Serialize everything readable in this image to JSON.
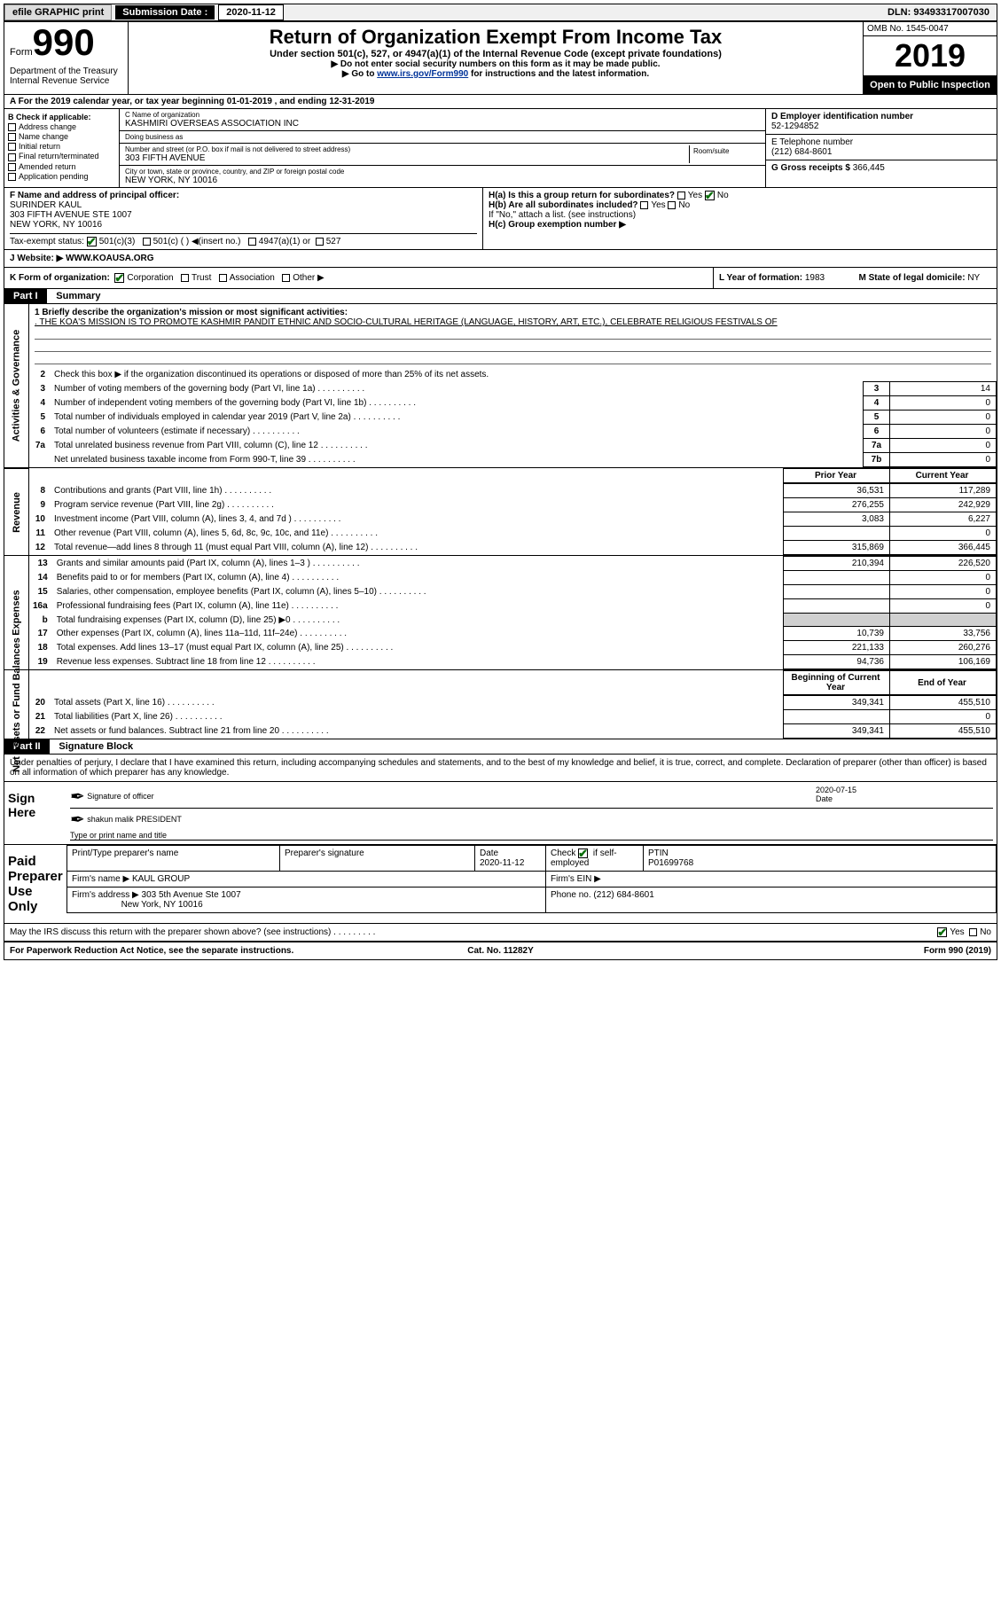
{
  "topbar": {
    "efile": "efile GRAPHIC print",
    "sublabel": "Submission Date :",
    "subdate": "2020-11-12",
    "dln": "DLN: 93493317007030"
  },
  "header": {
    "formword": "Form",
    "formnum": "990",
    "dept": "Department of the Treasury\nInternal Revenue Service",
    "title": "Return of Organization Exempt From Income Tax",
    "subtitle": "Under section 501(c), 527, or 4947(a)(1) of the Internal Revenue Code (except private foundations)",
    "note1": "▶ Do not enter social security numbers on this form as it may be made public.",
    "note2_pre": "▶ Go to ",
    "note2_link": "www.irs.gov/Form990",
    "note2_post": " for instructions and the latest information.",
    "omb": "OMB No. 1545-0047",
    "year": "2019",
    "open": "Open to Public Inspection"
  },
  "rowA": "A For the 2019 calendar year, or tax year beginning 01-01-2019    , and ending 12-31-2019",
  "colB_label": "B Check if applicable:",
  "colB_items": [
    "Address change",
    "Name change",
    "Initial return",
    "Final return/terminated",
    "Amended return",
    "Application pending"
  ],
  "colC": {
    "name_lbl": "C Name of organization",
    "name_val": "KASHMIRI OVERSEAS ASSOCIATION INC",
    "dba_lbl": "Doing business as",
    "dba_val": "",
    "addr_lbl": "Number and street (or P.O. box if mail is not delivered to street address)",
    "addr_val": "303 FIFTH AVENUE",
    "room_lbl": "Room/suite",
    "city_lbl": "City or town, state or province, country, and ZIP or foreign postal code",
    "city_val": "NEW YORK, NY  10016"
  },
  "colRight": {
    "d_lbl": "D Employer identification number",
    "d_val": "52-1294852",
    "e_lbl": "E Telephone number",
    "e_val": "(212) 684-8601",
    "g_lbl": "G Gross receipts $",
    "g_val": "366,445"
  },
  "rowF": {
    "lbl": "F  Name and address of principal officer:",
    "v1": "SURINDER KAUL",
    "v2": "303 FIFTH AVENUE STE 1007",
    "v3": "NEW YORK, NY  10016"
  },
  "rowH": {
    "ha": "H(a)  Is this a group return for subordinates?",
    "hb": "H(b)  Are all subordinates included?",
    "hb_note": "If \"No,\" attach a list. (see instructions)",
    "hc": "H(c)  Group exemption number ▶"
  },
  "taxstatus_lbl": "Tax-exempt status:",
  "taxstatus_opts": [
    "501(c)(3)",
    "501(c) (   ) ◀(insert no.)",
    "4947(a)(1) or",
    "527"
  ],
  "rowJ_lbl": "J     Website: ▶",
  "rowJ_val": "WWW.KOAUSA.ORG",
  "rowK_lbl": "K Form of organization:",
  "rowK_opts": [
    "Corporation",
    "Trust",
    "Association",
    "Other ▶"
  ],
  "rowL_lbl": "L Year of formation:",
  "rowL_val": "1983",
  "rowM_lbl": "M State of legal domicile:",
  "rowM_val": "NY",
  "part1": {
    "hdr": "Part I",
    "title": "Summary",
    "q1_lbl": "1  Briefly describe the organization's mission or most significant activities:",
    "q1_val": ". THE KOA'S MISSION IS TO PROMOTE KASHMIR PANDIT ETHNIC AND SOCIO-CULTURAL HERITAGE (LANGUAGE, HISTORY, ART, ETC.), CELEBRATE RELIGIOUS FESTIVALS OF",
    "q2": "Check this box ▶       if the organization discontinued its operations or disposed of more than 25% of its net assets.",
    "side_act": "Activities & Governance",
    "side_rev": "Revenue",
    "side_exp": "Expenses",
    "side_net": "Net Assets or Fund Balances",
    "rows_gov": [
      {
        "n": "3",
        "t": "Number of voting members of the governing body (Part VI, line 1a)",
        "box": "3",
        "v": "14"
      },
      {
        "n": "4",
        "t": "Number of independent voting members of the governing body (Part VI, line 1b)",
        "box": "4",
        "v": "0"
      },
      {
        "n": "5",
        "t": "Total number of individuals employed in calendar year 2019 (Part V, line 2a)",
        "box": "5",
        "v": "0"
      },
      {
        "n": "6",
        "t": "Total number of volunteers (estimate if necessary)",
        "box": "6",
        "v": "0"
      },
      {
        "n": "7a",
        "t": "Total unrelated business revenue from Part VIII, column (C), line 12",
        "box": "7a",
        "v": "0"
      },
      {
        "n": "",
        "t": "Net unrelated business taxable income from Form 990-T, line 39",
        "box": "7b",
        "v": "0"
      }
    ],
    "col_prior": "Prior Year",
    "col_current": "Current Year",
    "rows_rev": [
      {
        "n": "8",
        "t": "Contributions and grants (Part VIII, line 1h)",
        "p": "36,531",
        "c": "117,289"
      },
      {
        "n": "9",
        "t": "Program service revenue (Part VIII, line 2g)",
        "p": "276,255",
        "c": "242,929"
      },
      {
        "n": "10",
        "t": "Investment income (Part VIII, column (A), lines 3, 4, and 7d )",
        "p": "3,083",
        "c": "6,227"
      },
      {
        "n": "11",
        "t": "Other revenue (Part VIII, column (A), lines 5, 6d, 8c, 9c, 10c, and 11e)",
        "p": "",
        "c": "0"
      },
      {
        "n": "12",
        "t": "Total revenue—add lines 8 through 11 (must equal Part VIII, column (A), line 12)",
        "p": "315,869",
        "c": "366,445"
      }
    ],
    "rows_exp": [
      {
        "n": "13",
        "t": "Grants and similar amounts paid (Part IX, column (A), lines 1–3 )",
        "p": "210,394",
        "c": "226,520"
      },
      {
        "n": "14",
        "t": "Benefits paid to or for members (Part IX, column (A), line 4)",
        "p": "",
        "c": "0"
      },
      {
        "n": "15",
        "t": "Salaries, other compensation, employee benefits (Part IX, column (A), lines 5–10)",
        "p": "",
        "c": "0"
      },
      {
        "n": "16a",
        "t": "Professional fundraising fees (Part IX, column (A), line 11e)",
        "p": "",
        "c": "0"
      },
      {
        "n": "b",
        "t": "Total fundraising expenses (Part IX, column (D), line 25) ▶0",
        "p": "shade",
        "c": "shade"
      },
      {
        "n": "17",
        "t": "Other expenses (Part IX, column (A), lines 11a–11d, 11f–24e)",
        "p": "10,739",
        "c": "33,756"
      },
      {
        "n": "18",
        "t": "Total expenses. Add lines 13–17 (must equal Part IX, column (A), line 25)",
        "p": "221,133",
        "c": "260,276"
      },
      {
        "n": "19",
        "t": "Revenue less expenses. Subtract line 18 from line 12",
        "p": "94,736",
        "c": "106,169"
      }
    ],
    "col_beg": "Beginning of Current Year",
    "col_end": "End of Year",
    "rows_net": [
      {
        "n": "20",
        "t": "Total assets (Part X, line 16)",
        "p": "349,341",
        "c": "455,510"
      },
      {
        "n": "21",
        "t": "Total liabilities (Part X, line 26)",
        "p": "",
        "c": "0"
      },
      {
        "n": "22",
        "t": "Net assets or fund balances. Subtract line 21 from line 20",
        "p": "349,341",
        "c": "455,510"
      }
    ]
  },
  "part2": {
    "hdr": "Part II",
    "title": "Signature Block",
    "decl": "Under penalties of perjury, I declare that I have examined this return, including accompanying schedules and statements, and to the best of my knowledge and belief, it is true, correct, and complete. Declaration of preparer (other than officer) is based on all information of which preparer has any knowledge."
  },
  "sign": {
    "lbl": "Sign Here",
    "l1a": "Signature of officer",
    "l1b_date": "2020-07-15",
    "l1b": "Date",
    "l2v": "shakun malik  PRESIDENT",
    "l2": "Type or print name and title"
  },
  "prep": {
    "lbl": "Paid Preparer Use Only",
    "c1": "Print/Type preparer's name",
    "c2": "Preparer's signature",
    "c3": "Date",
    "c3v": "2020-11-12",
    "c4": "Check",
    "c4b": "if self-employed",
    "c5": "PTIN",
    "c5v": "P01699768",
    "firm_lbl": "Firm's name    ▶",
    "firm_val": "KAUL GROUP",
    "ein_lbl": "Firm's EIN ▶",
    "addr_lbl": "Firm's address ▶",
    "addr_val1": "303 5th Avenue Ste 1007",
    "addr_val2": "New York, NY  10016",
    "phone_lbl": "Phone no.",
    "phone_val": "(212) 684-8601"
  },
  "discuss": "May the IRS discuss this return with the preparer shown above? (see instructions)",
  "footer": {
    "l": "For Paperwork Reduction Act Notice, see the separate instructions.",
    "c": "Cat. No. 11282Y",
    "r": "Form 990 (2019)"
  }
}
